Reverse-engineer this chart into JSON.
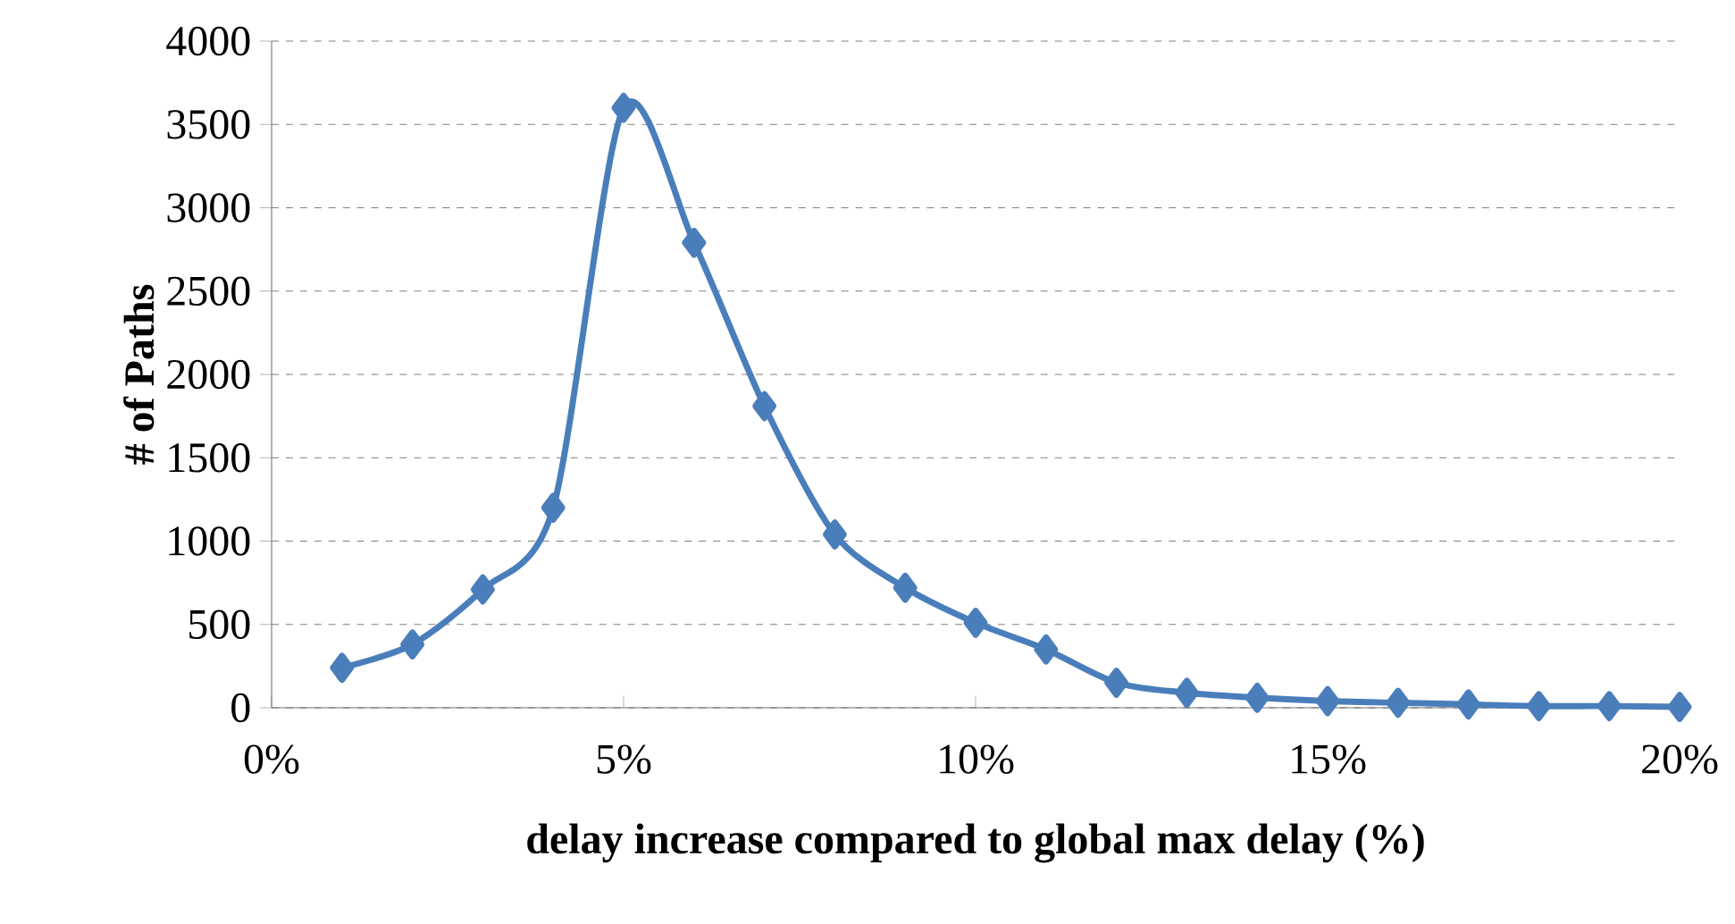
{
  "chart_data": {
    "type": "line",
    "xlabel": "delay increase compared to global max delay (%)",
    "ylabel": "# of Paths",
    "x": [
      1,
      2,
      3,
      4,
      5,
      6,
      7,
      8,
      9,
      10,
      11,
      12,
      13,
      14,
      15,
      16,
      17,
      18,
      19,
      20
    ],
    "series": [
      {
        "color": "#4a7ebb",
        "values": [
          240,
          380,
          710,
          1200,
          3600,
          2790,
          1810,
          1040,
          720,
          510,
          350,
          150,
          90,
          60,
          40,
          30,
          20,
          10,
          10,
          5
        ]
      }
    ],
    "xlim": [
      0,
      20
    ],
    "xticks": [
      {
        "value": 0,
        "label": "0%"
      },
      {
        "value": 5,
        "label": "5%"
      },
      {
        "value": 10,
        "label": "10%"
      },
      {
        "value": 15,
        "label": "15%"
      },
      {
        "value": 20,
        "label": "20%"
      }
    ],
    "ylim": [
      0,
      4000
    ],
    "yticks": [
      0,
      500,
      1000,
      1500,
      2000,
      2500,
      3000,
      3500,
      4000
    ],
    "grid": "y",
    "marker": "diamond",
    "line_style": "solid"
  }
}
